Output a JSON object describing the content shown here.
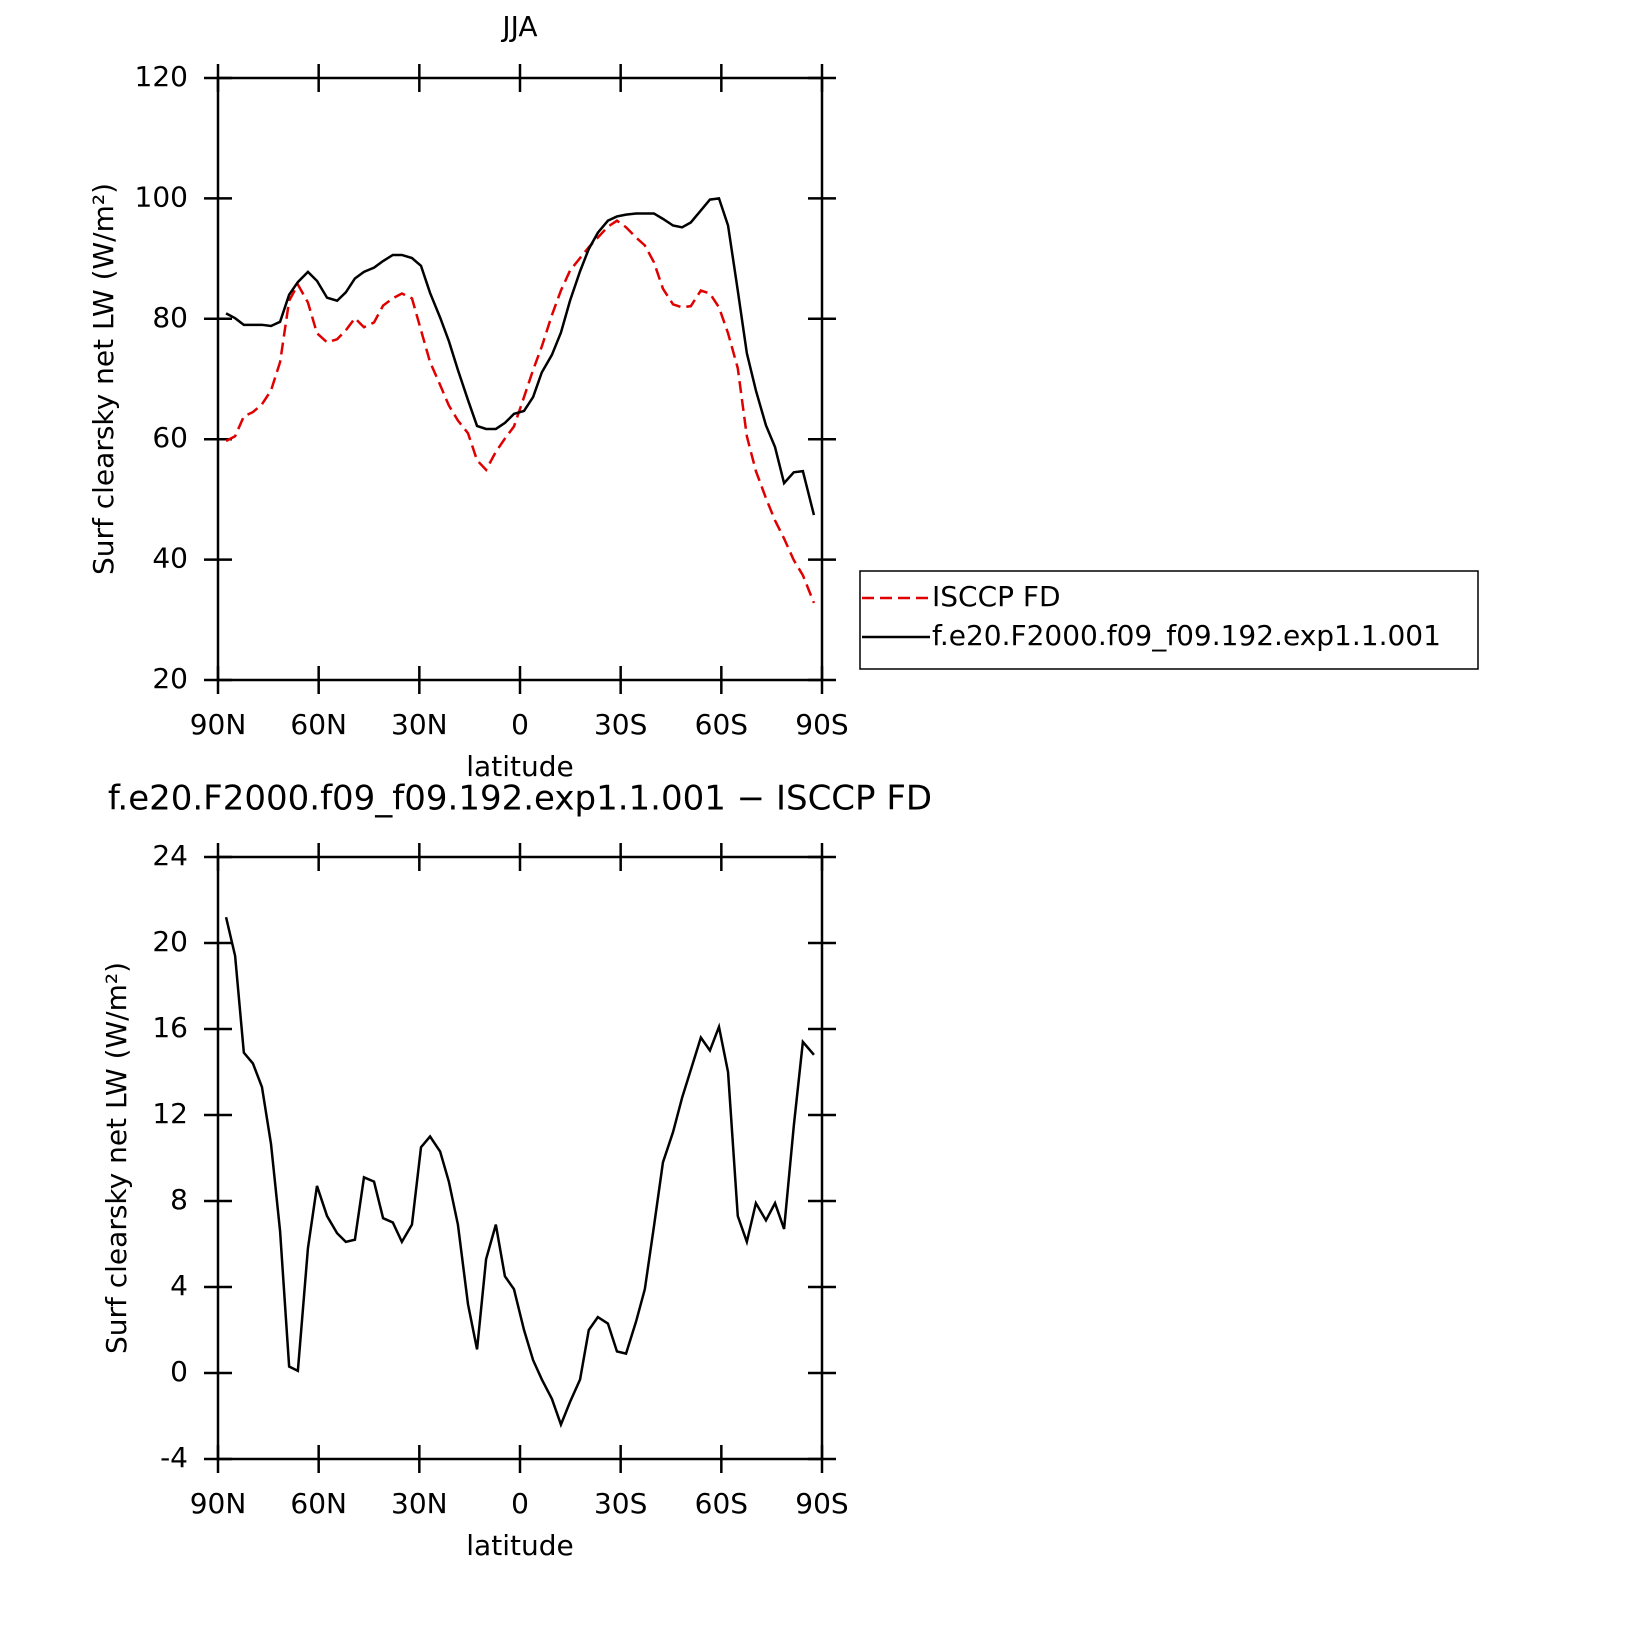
{
  "chart_data": [
    {
      "type": "line",
      "title": "JJA",
      "xlabel": "latitude",
      "ylabel": "Surf clearsky net LW (W/m²)",
      "x": [
        87.6,
        84.9,
        82.3,
        79.6,
        76.9,
        74.2,
        71.5,
        68.8,
        66.2,
        63.2,
        60.5,
        57.5,
        54.5,
        51.9,
        49.2,
        46.5,
        43.5,
        40.8,
        37.9,
        35.2,
        32.2,
        29.5,
        26.8,
        23.8,
        21.2,
        18.5,
        15.5,
        12.8,
        10.1,
        7.2,
        4.5,
        1.8,
        -1.2,
        -3.9,
        -6.5,
        -9.5,
        -12.2,
        -14.9,
        -17.9,
        -20.5,
        -23.2,
        -26.2,
        -28.9,
        -31.6,
        -34.6,
        -37.2,
        -39.9,
        -42.6,
        -45.6,
        -48.3,
        -50.9,
        -53.9,
        -56.6,
        -59.3,
        -62,
        -64.9,
        -67.6,
        -70.3,
        -73.3,
        -76,
        -78.7,
        -81.6,
        -84.3,
        -87.6
      ],
      "series": [
        {
          "name": "ISCCP FD",
          "color": "#e00000",
          "dash": true,
          "values": [
            59.7,
            60.5,
            63.8,
            64.5,
            65.8,
            68.1,
            72.8,
            83,
            85.7,
            82.7,
            77.6,
            76.1,
            76.6,
            78.1,
            80.1,
            78.6,
            79.4,
            82.2,
            83.4,
            84.2,
            83.4,
            78.1,
            72.8,
            69,
            65.6,
            63.1,
            61,
            56.5,
            54.9,
            57.9,
            60.1,
            62.1,
            67,
            71.5,
            75.4,
            80.6,
            84.7,
            88,
            90.1,
            91.9,
            93.5,
            95.3,
            96.3,
            95.2,
            93.5,
            92.2,
            89.4,
            85,
            82.4,
            81.9,
            82.1,
            84.7,
            84.2,
            81.9,
            77.6,
            71.8,
            60.5,
            54.7,
            50.2,
            46.5,
            43.5,
            39.9,
            37.4,
            32.8
          ]
        },
        {
          "name": "f.e20.F2000.f09_f09.192.exp1.1.001",
          "color": "#000000",
          "dash": false,
          "values": [
            80.9,
            80.1,
            79,
            79,
            79,
            78.8,
            79.5,
            84,
            86.1,
            87.8,
            86.3,
            83.5,
            83,
            84.4,
            86.7,
            87.8,
            88.5,
            89.6,
            90.6,
            90.6,
            90.1,
            88.8,
            84.3,
            80.2,
            76.3,
            71.5,
            66.5,
            62.2,
            61.7,
            61.7,
            62.7,
            64.2,
            64.7,
            67,
            71.1,
            74,
            77.7,
            83,
            87.9,
            91.6,
            94.3,
            96.3,
            97,
            97.3,
            97.5,
            97.5,
            97.5,
            96.6,
            95.5,
            95.2,
            96,
            98,
            99.8,
            100,
            95.5,
            84.7,
            74.3,
            68.1,
            62.3,
            58.7,
            52.7,
            54.5,
            54.7,
            47.4
          ]
        }
      ],
      "xlim": [
        90,
        -90
      ],
      "xticks": [
        {
          "value": 90,
          "label": "90N"
        },
        {
          "value": 60,
          "label": "60N"
        },
        {
          "value": 30,
          "label": "30N"
        },
        0,
        {
          "value": -30,
          "label": "30S"
        },
        {
          "value": -60,
          "label": "60S"
        },
        {
          "value": -90,
          "label": "90S"
        }
      ],
      "ylim": [
        20,
        120
      ],
      "yticks": [
        20,
        40,
        60,
        80,
        100,
        120
      ],
      "legend": "right"
    },
    {
      "type": "line",
      "title": "f.e20.F2000.f09_f09.192.exp1.1.001 − ISCCP FD",
      "xlabel": "latitude",
      "ylabel": "Surf clearsky net LW (W/m²)",
      "x": [
        87.6,
        84.9,
        82.3,
        79.6,
        76.9,
        74.2,
        71.5,
        68.8,
        66.2,
        63.2,
        60.5,
        57.5,
        54.5,
        51.9,
        49.2,
        46.5,
        43.5,
        40.8,
        37.9,
        35.2,
        32.2,
        29.5,
        26.8,
        23.8,
        21.2,
        18.5,
        15.5,
        12.8,
        10.1,
        7.2,
        4.5,
        1.8,
        -1.2,
        -3.9,
        -6.5,
        -9.5,
        -12.2,
        -14.9,
        -17.9,
        -20.5,
        -23.2,
        -26.2,
        -28.9,
        -31.6,
        -34.6,
        -37.2,
        -39.9,
        -42.6,
        -45.6,
        -48.3,
        -50.9,
        -53.9,
        -56.6,
        -59.3,
        -62,
        -64.9,
        -67.6,
        -70.3,
        -73.3,
        -76,
        -78.7,
        -81.6,
        -84.3,
        -87.6
      ],
      "series": [
        {
          "color": "#000000",
          "dash": false,
          "values": [
            21.2,
            19.4,
            14.9,
            14.4,
            13.3,
            10.65,
            6.6,
            0.3,
            0.1,
            5.8,
            8.7,
            7.3,
            6.5,
            6.1,
            6.2,
            9.1,
            8.9,
            7.2,
            7,
            6.1,
            6.9,
            10.5,
            11,
            10.3,
            8.9,
            6.9,
            3.2,
            1.1,
            5.3,
            6.9,
            4.5,
            3.9,
            2,
            0.6,
            -0.3,
            -1.2,
            -2.4,
            -1.35,
            -0.3,
            2,
            2.6,
            2.3,
            1,
            0.9,
            2.4,
            3.9,
            6.8,
            9.8,
            11.2,
            12.8,
            14.1,
            15.6,
            15,
            16.1,
            14,
            7.3,
            6.1,
            7.9,
            7.1,
            7.9,
            6.7,
            11.5,
            15.4,
            14.8
          ]
        }
      ],
      "xlim": [
        90,
        -90
      ],
      "xticks": [
        {
          "value": 90,
          "label": "90N"
        },
        {
          "value": 60,
          "label": "60N"
        },
        {
          "value": 30,
          "label": "30N"
        },
        0,
        {
          "value": -30,
          "label": "30S"
        },
        {
          "value": -60,
          "label": "60S"
        },
        {
          "value": -90,
          "label": "90S"
        }
      ],
      "ylim": [
        -4,
        24
      ],
      "yticks": [
        -4,
        0,
        4,
        8,
        12,
        16,
        20,
        24
      ]
    }
  ]
}
